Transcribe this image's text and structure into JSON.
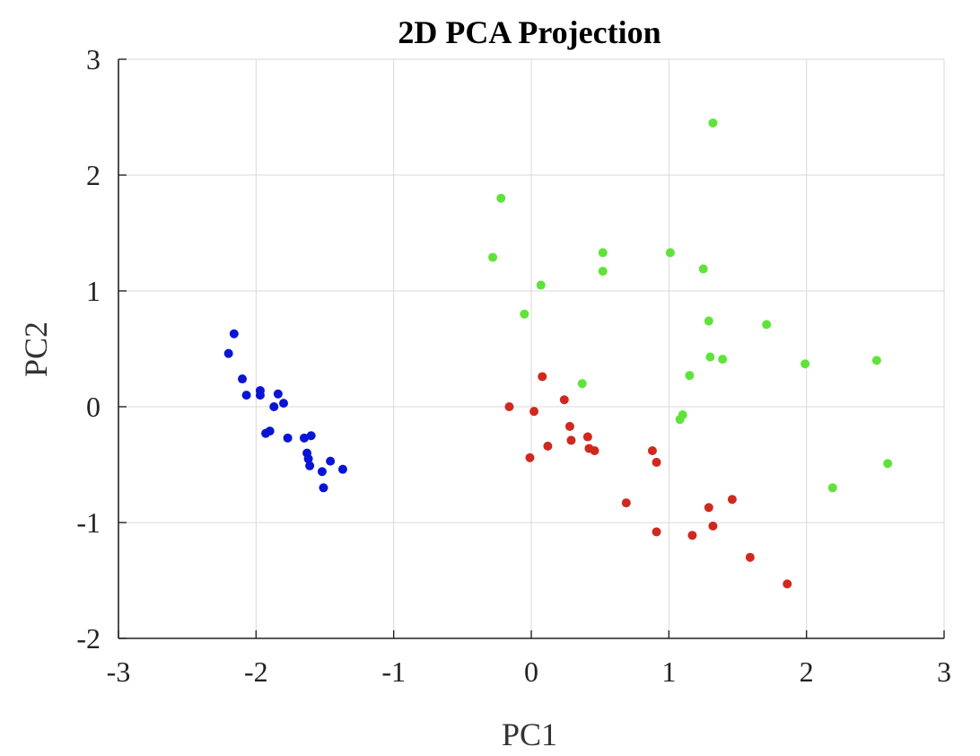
{
  "chart_data": {
    "type": "scatter",
    "title": "2D PCA Projection",
    "xlabel": "PC1",
    "ylabel": "PC2",
    "xlim": [
      -3,
      3
    ],
    "ylim": [
      -2,
      3
    ],
    "xticks": [
      -3,
      -2,
      -1,
      0,
      1,
      2,
      3
    ],
    "yticks": [
      -2,
      -1,
      0,
      1,
      2,
      3
    ],
    "grid": true,
    "series": [
      {
        "color": "#0a14d6",
        "points": [
          [
            -2.2,
            0.46
          ],
          [
            -2.16,
            0.63
          ],
          [
            -2.1,
            0.24
          ],
          [
            -2.07,
            0.1
          ],
          [
            -1.97,
            0.14
          ],
          [
            -1.97,
            0.1
          ],
          [
            -1.93,
            -0.23
          ],
          [
            -1.9,
            -0.21
          ],
          [
            -1.87,
            0.0
          ],
          [
            -1.84,
            0.11
          ],
          [
            -1.8,
            0.03
          ],
          [
            -1.77,
            -0.27
          ],
          [
            -1.65,
            -0.27
          ],
          [
            -1.63,
            -0.4
          ],
          [
            -1.62,
            -0.45
          ],
          [
            -1.61,
            -0.51
          ],
          [
            -1.6,
            -0.25
          ],
          [
            -1.52,
            -0.56
          ],
          [
            -1.51,
            -0.7
          ],
          [
            -1.46,
            -0.47
          ],
          [
            -1.37,
            -0.54
          ]
        ]
      },
      {
        "color": "#d0281e",
        "points": [
          [
            -0.16,
            0.0
          ],
          [
            -0.01,
            -0.44
          ],
          [
            0.02,
            -0.04
          ],
          [
            0.08,
            0.26
          ],
          [
            0.12,
            -0.34
          ],
          [
            0.24,
            0.06
          ],
          [
            0.28,
            -0.17
          ],
          [
            0.29,
            -0.29
          ],
          [
            0.41,
            -0.26
          ],
          [
            0.42,
            -0.36
          ],
          [
            0.46,
            -0.38
          ],
          [
            0.69,
            -0.83
          ],
          [
            0.88,
            -0.38
          ],
          [
            0.91,
            -0.48
          ],
          [
            0.91,
            -1.08
          ],
          [
            1.17,
            -1.11
          ],
          [
            1.29,
            -0.87
          ],
          [
            1.32,
            -1.03
          ],
          [
            1.46,
            -0.8
          ],
          [
            1.59,
            -1.3
          ],
          [
            1.86,
            -1.53
          ]
        ]
      },
      {
        "color": "#5fe33a",
        "points": [
          [
            -0.28,
            1.29
          ],
          [
            -0.22,
            1.8
          ],
          [
            -0.05,
            0.8
          ],
          [
            0.07,
            1.05
          ],
          [
            0.37,
            0.2
          ],
          [
            0.52,
            1.33
          ],
          [
            0.52,
            1.17
          ],
          [
            1.01,
            1.33
          ],
          [
            1.08,
            -0.11
          ],
          [
            1.1,
            -0.07
          ],
          [
            1.15,
            0.27
          ],
          [
            1.25,
            1.19
          ],
          [
            1.29,
            0.74
          ],
          [
            1.3,
            0.43
          ],
          [
            1.32,
            2.45
          ],
          [
            1.39,
            0.41
          ],
          [
            1.71,
            0.71
          ],
          [
            1.99,
            0.37
          ],
          [
            2.19,
            -0.7
          ],
          [
            2.51,
            0.4
          ],
          [
            2.59,
            -0.49
          ]
        ]
      }
    ]
  }
}
